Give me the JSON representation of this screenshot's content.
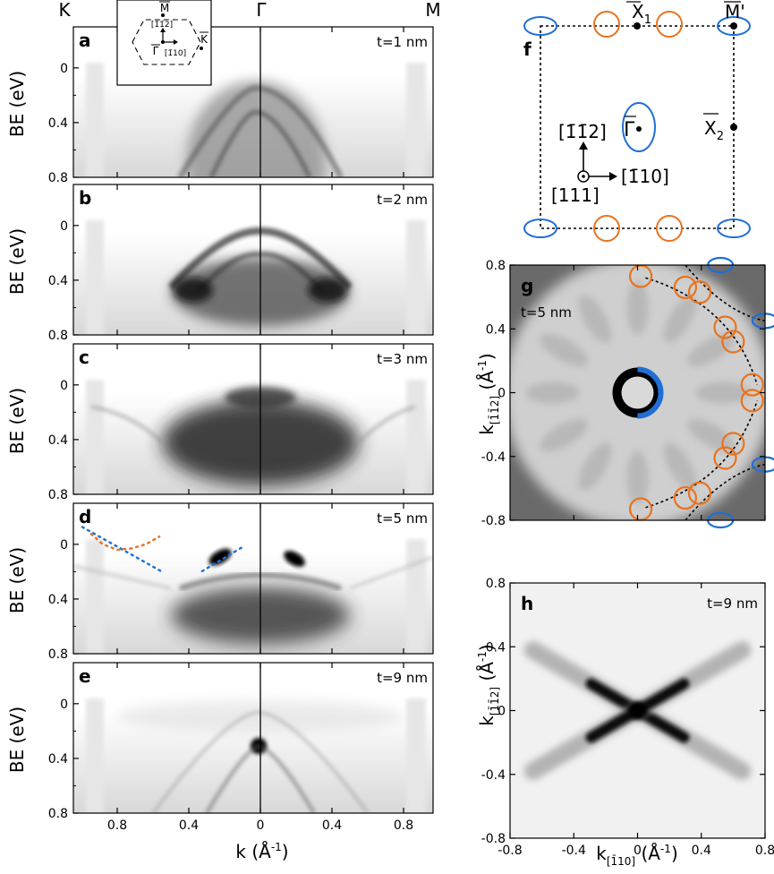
{
  "top_labels": {
    "K": "K",
    "Gamma": "Γ",
    "M": "M"
  },
  "inset_bz": {
    "M": "M",
    "K": "K",
    "Gamma": "Γ",
    "dir_up": "[1̄1̄2]",
    "dir_right": "[1̄10]"
  },
  "shared_y_label": "BE (eV)",
  "x_label_left": "k (Å",
  "x_label_left_sup": "-1",
  "x_label_left_close": ")",
  "panel_f": {
    "letter": "f",
    "X1": "X",
    "X1_sub": "1",
    "M1": "M'",
    "X2": "X",
    "X2_sub": "2",
    "Gamma": "Γ",
    "dir_up": "[1̄1̄2]",
    "dir_right": "[1̄10]",
    "dir_out": "[111]",
    "colors": {
      "blue": "#1f6fd6",
      "orange": "#e8731e"
    }
  },
  "y_label_right_top": "k",
  "y_label_right_sub": "[1̄1̄2]",
  "y_label_right_unit": " (Å",
  "x_label_right": "k",
  "x_label_right_sub": "[1̄10]",
  "x_label_right_unit": " (Å",
  "unit_sup": "-1",
  "chart_data": [
    {
      "id": "a",
      "type": "heatmap",
      "letter": "a",
      "annotation": "t=1 nm",
      "x_ticks": [
        "0.8",
        "0.4",
        "0",
        "0.4",
        "0.8"
      ],
      "y_ticks": [
        "0",
        "0.4",
        "0.8"
      ],
      "ylim": [
        0.8,
        -0.3
      ],
      "description_features": "broad dispersive band near Gamma"
    },
    {
      "id": "b",
      "type": "heatmap",
      "letter": "b",
      "annotation": "t=2 nm",
      "x_ticks": [
        "0.8",
        "0.4",
        "0",
        "0.4",
        "0.8"
      ],
      "y_ticks": [
        "0",
        "0.4",
        "0.8"
      ],
      "ylim": [
        0.8,
        -0.3
      ]
    },
    {
      "id": "c",
      "type": "heatmap",
      "letter": "c",
      "annotation": "t=3 nm",
      "x_ticks": [
        "0.8",
        "0.4",
        "0",
        "0.4",
        "0.8"
      ],
      "y_ticks": [
        "0",
        "0.4",
        "0.8"
      ],
      "ylim": [
        0.8,
        -0.3
      ]
    },
    {
      "id": "d",
      "type": "heatmap",
      "letter": "d",
      "annotation": "t=5 nm",
      "x_ticks": [
        "0.8",
        "0.4",
        "0",
        "0.4",
        "0.8"
      ],
      "y_ticks": [
        "0",
        "0.4",
        "0.8"
      ],
      "ylim": [
        0.8,
        -0.3
      ],
      "overlay_lines": [
        {
          "color": "#1f6fd6",
          "x": [
            -1.0,
            -0.55
          ],
          "y": [
            -0.13,
            0.2
          ]
        },
        {
          "color": "#1f6fd6",
          "x": [
            -0.33,
            -0.1
          ],
          "y": [
            0.2,
            0.02
          ]
        },
        {
          "color": "#e8731e",
          "x": [
            -0.95,
            -0.88,
            -0.8,
            -0.72,
            -0.64,
            -0.56
          ],
          "y": [
            -0.08,
            0.0,
            0.04,
            0.03,
            0.0,
            -0.06
          ]
        }
      ]
    },
    {
      "id": "e",
      "type": "heatmap",
      "letter": "e",
      "annotation": "t=9 nm",
      "x_ticks": [
        "0.8",
        "0.4",
        "0",
        "0.4",
        "0.8"
      ],
      "y_ticks": [
        "0",
        "0.4",
        "0.8"
      ],
      "ylim": [
        0.8,
        -0.3
      ]
    },
    {
      "id": "g",
      "type": "heatmap",
      "letter": "g",
      "annotation": "t=5 nm",
      "x_ticks": [],
      "y_ticks": [
        "0.8",
        "0.4",
        "0",
        "-0.4",
        "-0.8"
      ],
      "xlim": [
        -0.8,
        0.8
      ],
      "ylim": [
        -0.8,
        0.8
      ],
      "orange_circles": [
        {
          "x": 0.02,
          "y": 0.73
        },
        {
          "x": 0.3,
          "y": 0.66
        },
        {
          "x": 0.39,
          "y": 0.63
        },
        {
          "x": 0.55,
          "y": 0.41
        },
        {
          "x": 0.6,
          "y": 0.32
        },
        {
          "x": 0.72,
          "y": 0.05
        },
        {
          "x": 0.72,
          "y": -0.05
        },
        {
          "x": 0.6,
          "y": -0.32
        },
        {
          "x": 0.55,
          "y": -0.41
        },
        {
          "x": 0.39,
          "y": -0.63
        },
        {
          "x": 0.3,
          "y": -0.66
        },
        {
          "x": 0.02,
          "y": -0.73
        }
      ]
    },
    {
      "id": "h",
      "type": "heatmap",
      "letter": "h",
      "annotation": "t=9 nm",
      "x_ticks": [
        "-0.8",
        "-0.4",
        "0",
        "0.4",
        "0.8"
      ],
      "y_ticks": [
        "0.8",
        "0.4",
        "0",
        "-0.4",
        "-0.8"
      ],
      "xlim": [
        -0.8,
        0.8
      ],
      "ylim": [
        -0.8,
        0.8
      ]
    }
  ]
}
